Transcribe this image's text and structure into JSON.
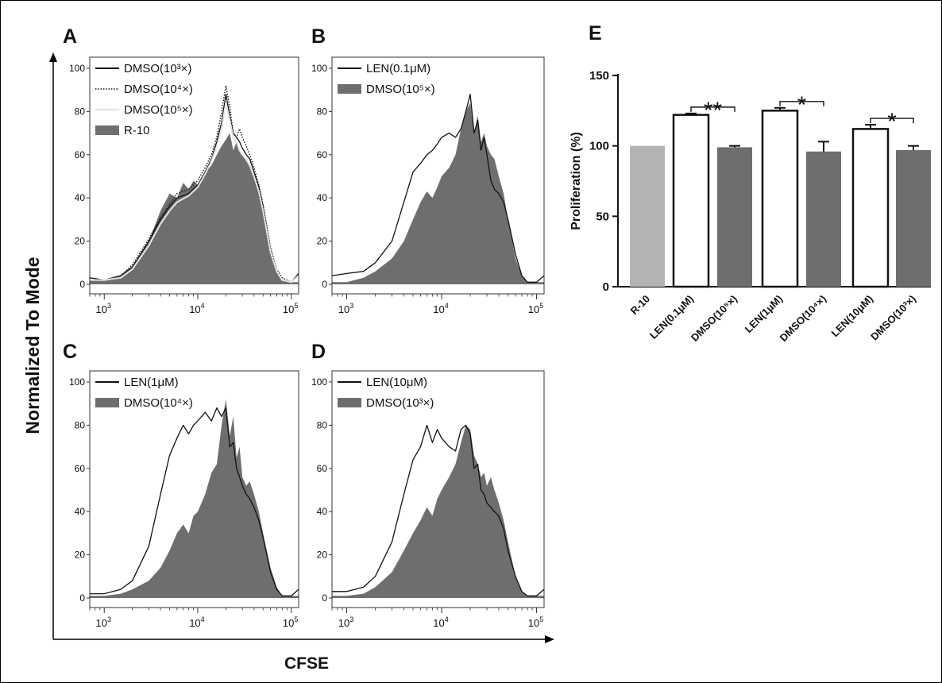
{
  "figure": {
    "axis_ylabel": "Normalized To Mode",
    "axis_xlabel": "CFSE"
  },
  "chart_data": [
    {
      "panel": "A",
      "type": "area",
      "x_scale": "log",
      "xlim": [
        700,
        120000
      ],
      "ylim": [
        0,
        100
      ],
      "y_ticks": [
        0,
        20,
        40,
        60,
        80,
        100
      ],
      "x_ticks": [
        {
          "base": "10",
          "exp": "3",
          "value": 1000
        },
        {
          "base": "10",
          "exp": "4",
          "value": 10000
        },
        {
          "base": "10",
          "exp": "5",
          "value": 100000
        }
      ],
      "legend": [
        {
          "label": "DMSO(10³×)",
          "style": "solid-black"
        },
        {
          "label": "DMSO(10⁴×)",
          "style": "dotted-black"
        },
        {
          "label": "DMSO(10⁵×)",
          "style": "solid-light"
        },
        {
          "label": "R-10",
          "style": "filled-gray"
        }
      ],
      "fill_series": {
        "name": "R-10",
        "x": [
          700,
          1000,
          1500,
          2000,
          3000,
          4000,
          5000,
          6000,
          7000,
          8000,
          9000,
          10000,
          12000,
          14000,
          16000,
          18000,
          20000,
          22000,
          24000,
          26000,
          28000,
          30000,
          33000,
          36000,
          40000,
          45000,
          50000,
          60000,
          70000,
          80000,
          100000,
          120000
        ],
        "y": [
          2,
          2,
          4,
          8,
          20,
          34,
          42,
          40,
          47,
          44,
          48,
          46,
          52,
          55,
          60,
          64,
          67,
          70,
          62,
          66,
          62,
          60,
          57,
          55,
          50,
          44,
          35,
          15,
          6,
          2,
          1,
          1
        ]
      },
      "line_series": [
        {
          "name": "DMSO(10³×)",
          "style": "solid-black",
          "x": [
            700,
            1000,
            1500,
            2000,
            3000,
            4000,
            5000,
            6000,
            8000,
            10000,
            12000,
            14000,
            16000,
            18000,
            20000,
            22000,
            24000,
            26000,
            28000,
            30000,
            33000,
            36000,
            40000,
            45000,
            50000,
            60000,
            70000,
            80000,
            100000,
            120000
          ],
          "y": [
            3,
            2,
            4,
            8,
            20,
            30,
            36,
            40,
            42,
            46,
            52,
            58,
            66,
            75,
            88,
            78,
            70,
            68,
            66,
            63,
            60,
            58,
            52,
            45,
            36,
            16,
            6,
            2,
            1,
            5
          ]
        },
        {
          "name": "DMSO(10⁴×)",
          "style": "dotted-black",
          "x": [
            700,
            1000,
            1500,
            2000,
            3000,
            4000,
            5000,
            6000,
            8000,
            10000,
            12000,
            14000,
            16000,
            18000,
            20000,
            22000,
            24000,
            26000,
            28000,
            30000,
            33000,
            36000,
            40000,
            45000,
            50000,
            60000,
            70000,
            80000,
            100000,
            120000
          ],
          "y": [
            2,
            2,
            4,
            9,
            21,
            31,
            37,
            42,
            44,
            48,
            54,
            60,
            68,
            80,
            92,
            82,
            70,
            68,
            72,
            68,
            64,
            60,
            54,
            46,
            37,
            17,
            7,
            3,
            1,
            4
          ]
        },
        {
          "name": "DMSO(10⁵×)",
          "style": "solid-light",
          "x": [
            700,
            1000,
            1500,
            2000,
            3000,
            4000,
            5000,
            6000,
            8000,
            10000,
            12000,
            14000,
            16000,
            18000,
            20000,
            22000,
            24000,
            26000,
            28000,
            30000,
            33000,
            36000,
            40000,
            45000,
            50000,
            60000,
            70000,
            80000,
            100000,
            120000
          ],
          "y": [
            2,
            2,
            3,
            7,
            18,
            28,
            34,
            38,
            41,
            45,
            51,
            57,
            64,
            72,
            84,
            76,
            68,
            66,
            62,
            60,
            58,
            55,
            50,
            43,
            34,
            15,
            6,
            2,
            1,
            4
          ]
        }
      ]
    },
    {
      "panel": "B",
      "type": "area",
      "x_scale": "log",
      "xlim": [
        700,
        120000
      ],
      "ylim": [
        0,
        100
      ],
      "y_ticks": [
        0,
        20,
        40,
        60,
        80,
        100
      ],
      "x_ticks": [
        {
          "base": "10",
          "exp": "3",
          "value": 1000
        },
        {
          "base": "10",
          "exp": "4",
          "value": 10000
        },
        {
          "base": "10",
          "exp": "5",
          "value": 100000
        }
      ],
      "legend": [
        {
          "label": "LEN(0.1μM)",
          "style": "solid-black"
        },
        {
          "label": "DMSO(10⁵×)",
          "style": "filled-gray"
        }
      ],
      "fill_series": {
        "name": "DMSO(10⁵×)",
        "x": [
          700,
          1000,
          1500,
          2000,
          3000,
          4000,
          5000,
          6000,
          7000,
          8000,
          9000,
          10000,
          12000,
          14000,
          16000,
          18000,
          20000,
          22000,
          24000,
          26000,
          28000,
          30000,
          33000,
          36000,
          40000,
          45000,
          50000,
          60000,
          70000,
          80000,
          100000,
          120000
        ],
        "y": [
          1,
          1,
          3,
          6,
          12,
          20,
          30,
          38,
          43,
          40,
          45,
          50,
          54,
          60,
          72,
          80,
          84,
          70,
          78,
          66,
          70,
          64,
          60,
          58,
          50,
          42,
          30,
          12,
          4,
          1,
          1,
          1
        ]
      },
      "line_series": [
        {
          "name": "LEN(0.1μM)",
          "style": "solid-black",
          "x": [
            700,
            1000,
            1500,
            2000,
            3000,
            4000,
            5000,
            6000,
            7000,
            8000,
            9000,
            10000,
            12000,
            14000,
            16000,
            18000,
            20000,
            22000,
            24000,
            26000,
            28000,
            30000,
            33000,
            36000,
            40000,
            45000,
            50000,
            60000,
            70000,
            80000,
            100000,
            120000
          ],
          "y": [
            4,
            5,
            6,
            10,
            20,
            38,
            52,
            56,
            60,
            62,
            65,
            68,
            70,
            68,
            72,
            80,
            88,
            70,
            76,
            62,
            68,
            60,
            48,
            44,
            42,
            38,
            30,
            14,
            4,
            1,
            1,
            4
          ]
        }
      ]
    },
    {
      "panel": "C",
      "type": "area",
      "x_scale": "log",
      "xlim": [
        700,
        120000
      ],
      "ylim": [
        0,
        100
      ],
      "y_ticks": [
        0,
        20,
        40,
        60,
        80,
        100
      ],
      "x_ticks": [
        {
          "base": "10",
          "exp": "3",
          "value": 1000
        },
        {
          "base": "10",
          "exp": "4",
          "value": 10000
        },
        {
          "base": "10",
          "exp": "5",
          "value": 100000
        }
      ],
      "legend": [
        {
          "label": "LEN(1μM)",
          "style": "solid-black"
        },
        {
          "label": "DMSO(10⁴×)",
          "style": "filled-gray"
        }
      ],
      "fill_series": {
        "name": "DMSO(10⁴×)",
        "x": [
          700,
          1000,
          1500,
          2000,
          3000,
          4000,
          5000,
          6000,
          7000,
          8000,
          9000,
          10000,
          12000,
          14000,
          16000,
          18000,
          20000,
          22000,
          24000,
          26000,
          28000,
          30000,
          33000,
          36000,
          40000,
          45000,
          50000,
          60000,
          70000,
          80000,
          100000,
          120000
        ],
        "y": [
          1,
          1,
          2,
          4,
          8,
          14,
          22,
          30,
          34,
          30,
          38,
          40,
          48,
          58,
          62,
          80,
          92,
          75,
          84,
          65,
          70,
          56,
          52,
          54,
          48,
          40,
          30,
          14,
          5,
          1,
          1,
          1
        ]
      },
      "line_series": [
        {
          "name": "LEN(1μM)",
          "style": "solid-black",
          "x": [
            700,
            1000,
            1500,
            2000,
            3000,
            4000,
            5000,
            6000,
            7000,
            8000,
            9000,
            10000,
            12000,
            14000,
            16000,
            18000,
            20000,
            22000,
            24000,
            26000,
            28000,
            30000,
            33000,
            36000,
            40000,
            45000,
            50000,
            60000,
            70000,
            80000,
            100000,
            120000
          ],
          "y": [
            2,
            2,
            4,
            8,
            24,
            48,
            66,
            74,
            80,
            76,
            80,
            82,
            86,
            82,
            88,
            84,
            88,
            70,
            72,
            60,
            56,
            52,
            48,
            46,
            42,
            36,
            28,
            12,
            4,
            1,
            1,
            4
          ]
        }
      ]
    },
    {
      "panel": "D",
      "type": "area",
      "x_scale": "log",
      "xlim": [
        700,
        120000
      ],
      "ylim": [
        0,
        100
      ],
      "y_ticks": [
        0,
        20,
        40,
        60,
        80,
        100
      ],
      "x_ticks": [
        {
          "base": "10",
          "exp": "3",
          "value": 1000
        },
        {
          "base": "10",
          "exp": "4",
          "value": 10000
        },
        {
          "base": "10",
          "exp": "5",
          "value": 100000
        }
      ],
      "legend": [
        {
          "label": "LEN(10μM)",
          "style": "solid-black"
        },
        {
          "label": "DMSO(10³×)",
          "style": "filled-gray"
        }
      ],
      "fill_series": {
        "name": "DMSO(10³×)",
        "x": [
          700,
          1000,
          1500,
          2000,
          3000,
          4000,
          5000,
          6000,
          7000,
          8000,
          9000,
          10000,
          12000,
          14000,
          16000,
          18000,
          20000,
          22000,
          24000,
          26000,
          28000,
          30000,
          33000,
          36000,
          40000,
          45000,
          50000,
          60000,
          70000,
          80000,
          100000,
          120000
        ],
        "y": [
          1,
          1,
          2,
          5,
          12,
          22,
          30,
          36,
          42,
          38,
          46,
          50,
          56,
          62,
          72,
          80,
          78,
          66,
          62,
          56,
          58,
          52,
          56,
          50,
          44,
          36,
          26,
          10,
          3,
          1,
          1,
          1
        ]
      },
      "line_series": [
        {
          "name": "LEN(10μM)",
          "style": "solid-black",
          "x": [
            700,
            1000,
            1500,
            2000,
            3000,
            4000,
            5000,
            6000,
            7000,
            8000,
            9000,
            10000,
            12000,
            14000,
            16000,
            18000,
            20000,
            22000,
            24000,
            26000,
            28000,
            30000,
            33000,
            36000,
            40000,
            45000,
            50000,
            60000,
            70000,
            80000,
            100000,
            120000
          ],
          "y": [
            3,
            3,
            5,
            10,
            26,
            48,
            64,
            70,
            80,
            72,
            78,
            74,
            70,
            68,
            78,
            80,
            76,
            60,
            62,
            50,
            48,
            44,
            42,
            40,
            38,
            32,
            22,
            10,
            3,
            1,
            1,
            4
          ]
        }
      ]
    },
    {
      "panel": "E",
      "type": "bar",
      "ylabel": "Proliferation (%)",
      "ylim": [
        0,
        150
      ],
      "y_ticks": [
        0,
        50,
        100,
        150
      ],
      "categories": [
        "R-10",
        "LEN(0.1μM)",
        "DMSO(10⁵×)",
        "LEN(1μM)",
        "DMSO(10⁴×)",
        "LEN(10μM)",
        "DMSO(10³×)"
      ],
      "values": [
        100,
        122,
        99,
        125,
        96,
        112,
        97
      ],
      "errors": [
        0,
        1,
        1,
        2,
        7,
        3,
        3
      ],
      "bar_styles": [
        "light-gray",
        "white",
        "dark-gray",
        "white",
        "dark-gray",
        "white",
        "dark-gray"
      ],
      "significance": [
        {
          "from": 1,
          "to": 2,
          "label": "**"
        },
        {
          "from": 3,
          "to": 4,
          "label": "*"
        },
        {
          "from": 5,
          "to": 6,
          "label": "*"
        }
      ]
    }
  ],
  "colors": {
    "fill_gray": "#6e6e6e",
    "light_bar": "#b3b3b3",
    "dark_bar": "#6e6e6e",
    "line_black": "#111111",
    "line_light": "#e4e4e4"
  }
}
